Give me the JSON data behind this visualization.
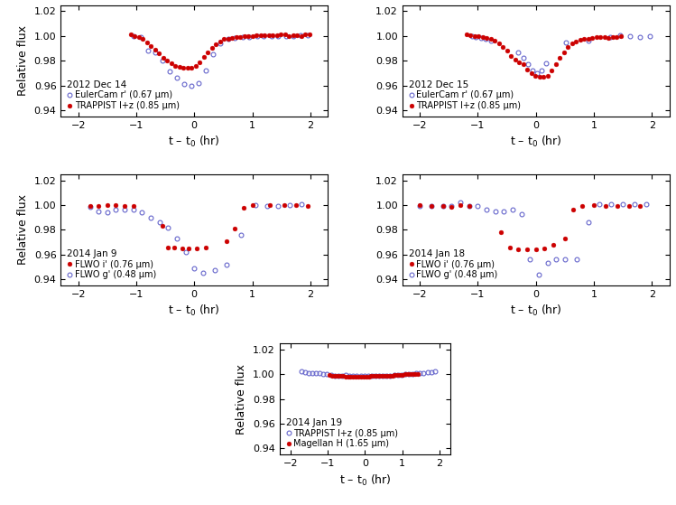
{
  "panels": [
    {
      "date": "2012 Dec 14",
      "series": [
        {
          "label": "EulerCam r' (0.67 μm)",
          "color": "#6666cc",
          "filled": false,
          "x": [
            -1.05,
            -0.92,
            -0.8,
            -0.68,
            -0.55,
            -0.42,
            -0.3,
            -0.17,
            -0.05,
            0.08,
            0.2,
            0.33,
            0.45,
            0.58,
            0.7,
            0.83,
            0.95,
            1.08,
            1.2,
            1.33,
            1.45,
            1.58,
            1.7,
            1.83,
            1.95
          ],
          "y": [
            0.9995,
            0.999,
            0.988,
            0.987,
            0.98,
            0.971,
            0.966,
            0.961,
            0.9595,
            0.962,
            0.972,
            0.985,
            0.994,
            0.998,
            0.9985,
            0.999,
            0.999,
            0.9995,
            0.9998,
            1.0,
            1.0,
            1.0,
            1.0002,
            1.0005,
            1.0005
          ]
        },
        {
          "label": "TRAPPIST I+z (0.85 μm)",
          "color": "#cc0000",
          "filled": true,
          "x": [
            -1.1,
            -1.03,
            -0.96,
            -0.89,
            -0.82,
            -0.75,
            -0.68,
            -0.61,
            -0.54,
            -0.47,
            -0.4,
            -0.33,
            -0.26,
            -0.19,
            -0.12,
            -0.05,
            0.02,
            0.09,
            0.16,
            0.23,
            0.3,
            0.37,
            0.44,
            0.51,
            0.58,
            0.65,
            0.72,
            0.79,
            0.86,
            0.93,
            1.0,
            1.07,
            1.14,
            1.21,
            1.28,
            1.35,
            1.42,
            1.49,
            1.56,
            1.63,
            1.7,
            1.77,
            1.84,
            1.91,
            1.98
          ],
          "y": [
            1.001,
            0.9995,
            0.999,
            0.9975,
            0.995,
            0.992,
            0.989,
            0.986,
            0.982,
            0.98,
            0.978,
            0.976,
            0.975,
            0.974,
            0.974,
            0.974,
            0.976,
            0.979,
            0.983,
            0.987,
            0.9905,
            0.993,
            0.9955,
            0.9975,
            0.998,
            0.9985,
            0.9988,
            0.999,
            0.9995,
            0.9998,
            1.0,
            1.0005,
            1.0005,
            1.0005,
            1.0003,
            1.0005,
            1.0008,
            1.001,
            1.001,
            0.9998,
            1.0005,
            1.0003,
            1.0,
            1.001,
            1.0015
          ]
        }
      ]
    },
    {
      "date": "2012 Dec 15",
      "series": [
        {
          "label": "EulerCam r' (0.67 μm)",
          "color": "#6666cc",
          "filled": false,
          "x": [
            -1.1,
            -1.03,
            -0.95,
            -0.87,
            -0.78,
            -0.3,
            -0.22,
            -0.14,
            -0.06,
            0.02,
            0.1,
            0.18,
            0.52,
            0.9,
            1.28,
            1.45,
            1.62,
            1.79,
            1.96
          ],
          "y": [
            1.0,
            0.999,
            0.9985,
            0.9975,
            0.996,
            0.987,
            0.982,
            0.9775,
            0.972,
            0.97,
            0.972,
            0.978,
            0.9945,
            0.9965,
            0.999,
            1.0005,
            1.0,
            0.999,
            0.9995
          ]
        },
        {
          "label": "TRAPPIST I+z (0.85 μm)",
          "color": "#cc0000",
          "filled": true,
          "x": [
            -1.2,
            -1.13,
            -1.06,
            -0.99,
            -0.92,
            -0.85,
            -0.78,
            -0.71,
            -0.64,
            -0.57,
            -0.5,
            -0.43,
            -0.36,
            -0.29,
            -0.22,
            -0.15,
            -0.08,
            -0.01,
            0.06,
            0.13,
            0.2,
            0.27,
            0.34,
            0.41,
            0.48,
            0.55,
            0.62,
            0.69,
            0.76,
            0.83,
            0.9,
            0.97,
            1.04,
            1.11,
            1.18,
            1.25,
            1.32,
            1.39,
            1.46
          ],
          "y": [
            1.001,
            1.0005,
            1.0,
            0.9995,
            0.999,
            0.9985,
            0.9975,
            0.996,
            0.994,
            0.991,
            0.988,
            0.984,
            0.981,
            0.979,
            0.977,
            0.973,
            0.97,
            0.968,
            0.967,
            0.967,
            0.968,
            0.972,
            0.977,
            0.982,
            0.987,
            0.991,
            0.994,
            0.9955,
            0.997,
            0.9975,
            0.998,
            0.9985,
            0.999,
            0.999,
            0.999,
            0.9985,
            0.999,
            0.999,
            0.9995
          ]
        }
      ]
    },
    {
      "date": "2014 Jan 9",
      "series": [
        {
          "label": "FLWO i' (0.76 μm)",
          "color": "#cc0000",
          "filled": true,
          "x": [
            -1.8,
            -1.65,
            -1.5,
            -1.35,
            -1.2,
            -1.05,
            -0.55,
            -0.45,
            -0.35,
            -0.2,
            -0.1,
            0.05,
            0.2,
            0.55,
            0.7,
            0.85,
            1.0,
            1.3,
            1.55,
            1.75,
            1.95
          ],
          "y": [
            0.9993,
            0.9995,
            1.0,
            1.0,
            0.9995,
            0.9995,
            0.983,
            0.966,
            0.966,
            0.965,
            0.965,
            0.965,
            0.966,
            0.971,
            0.981,
            0.998,
            0.9998,
            1.0,
            0.9998,
            0.9998,
            0.9995
          ]
        },
        {
          "label": "FLWO g' (0.48 μm)",
          "color": "#6666cc",
          "filled": false,
          "x": [
            -1.8,
            -1.65,
            -1.5,
            -1.35,
            -1.2,
            -1.05,
            -0.9,
            -0.75,
            -0.6,
            -0.45,
            -0.3,
            -0.15,
            0.0,
            0.15,
            0.35,
            0.55,
            0.8,
            1.05,
            1.25,
            1.45,
            1.65,
            1.85
          ],
          "y": [
            0.9985,
            0.995,
            0.9945,
            0.996,
            0.996,
            0.996,
            0.994,
            0.99,
            0.986,
            0.982,
            0.973,
            0.962,
            0.949,
            0.9455,
            0.947,
            0.952,
            0.976,
            1.0,
            0.999,
            0.999,
            1.0,
            1.001
          ]
        }
      ]
    },
    {
      "date": "2014 Jan 18",
      "series": [
        {
          "label": "FLWO i' (0.76 μm)",
          "color": "#cc0000",
          "filled": true,
          "x": [
            -2.0,
            -1.8,
            -1.6,
            -1.45,
            -1.3,
            -1.15,
            -0.6,
            -0.45,
            -0.3,
            -0.15,
            0.0,
            0.15,
            0.3,
            0.5,
            0.65,
            0.8,
            1.0,
            1.2,
            1.4,
            1.6,
            1.8
          ],
          "y": [
            1.0,
            0.999,
            0.999,
            0.9985,
            1.0,
            0.999,
            0.978,
            0.966,
            0.964,
            0.964,
            0.964,
            0.965,
            0.968,
            0.973,
            0.996,
            0.999,
            1.0,
            0.999,
            0.999,
            0.9995,
            0.999
          ]
        },
        {
          "label": "FLWO g' (0.48 μm)",
          "color": "#6666cc",
          "filled": false,
          "x": [
            -2.0,
            -1.8,
            -1.6,
            -1.45,
            -1.3,
            -1.15,
            -1.0,
            -0.85,
            -0.7,
            -0.55,
            -0.4,
            -0.25,
            -0.1,
            0.05,
            0.2,
            0.35,
            0.5,
            0.7,
            0.9,
            1.1,
            1.3,
            1.5,
            1.7,
            1.9
          ],
          "y": [
            0.9995,
            0.9995,
            0.999,
            0.9995,
            1.002,
            0.9995,
            0.999,
            0.996,
            0.995,
            0.995,
            0.996,
            0.993,
            0.956,
            0.944,
            0.953,
            0.956,
            0.956,
            0.956,
            0.986,
            1.0005,
            1.001,
            1.001,
            1.001,
            1.0005
          ]
        }
      ]
    },
    {
      "date": "2014 Jan 19",
      "series": [
        {
          "label": "TRAPPIST I+z (0.85 μm)",
          "color": "#6666cc",
          "filled": false,
          "x": [
            -1.72,
            -1.62,
            -1.52,
            -1.42,
            -1.32,
            -1.22,
            -1.12,
            -1.02,
            -0.92,
            -0.82,
            -0.72,
            -0.62,
            -0.52,
            -0.42,
            -0.32,
            -0.22,
            -0.12,
            -0.02,
            0.08,
            0.18,
            0.28,
            0.38,
            0.48,
            0.58,
            0.68,
            0.78,
            0.88,
            0.98,
            1.08,
            1.18,
            1.28,
            1.38,
            1.48,
            1.58,
            1.68,
            1.78,
            1.88
          ],
          "y": [
            1.002,
            1.0015,
            1.001,
            1.001,
            1.0005,
            1.0005,
            1.0,
            1.0,
            0.9995,
            0.999,
            0.999,
            0.999,
            0.9992,
            0.9988,
            0.9985,
            0.9985,
            0.9988,
            0.9985,
            0.9985,
            0.9988,
            0.9988,
            0.9988,
            0.9988,
            0.999,
            0.999,
            0.9993,
            0.9993,
            0.9995,
            0.9998,
            1.0,
            1.0002,
            1.0005,
            1.0005,
            1.001,
            1.0015,
            1.0015,
            1.002
          ]
        },
        {
          "label": "Magellan H (1.65 μm)",
          "color": "#cc0000",
          "filled": true,
          "x": [
            -0.95,
            -0.88,
            -0.81,
            -0.74,
            -0.67,
            -0.6,
            -0.53,
            -0.46,
            -0.39,
            -0.32,
            -0.25,
            -0.18,
            -0.11,
            -0.04,
            0.03,
            0.1,
            0.17,
            0.24,
            0.31,
            0.38,
            0.45,
            0.52,
            0.59,
            0.66,
            0.73,
            0.8,
            0.87,
            0.94,
            1.01,
            1.08,
            1.15,
            1.22,
            1.29,
            1.36,
            1.43
          ],
          "y": [
            0.9993,
            0.999,
            0.9988,
            0.9988,
            0.9985,
            0.9983,
            0.9982,
            0.998,
            0.998,
            0.9978,
            0.9978,
            0.998,
            0.998,
            0.998,
            0.9982,
            0.9982,
            0.9983,
            0.9985,
            0.9985,
            0.9985,
            0.9985,
            0.9988,
            0.9988,
            0.999,
            0.999,
            0.9993,
            0.9993,
            0.9995,
            0.9995,
            0.9998,
            0.9998,
            1.0,
            1.0,
            1.0,
            1.0
          ]
        }
      ]
    }
  ],
  "ylim": [
    0.935,
    1.025
  ],
  "xlim": [
    -2.3,
    2.3
  ],
  "yticks": [
    0.94,
    0.96,
    0.98,
    1.0,
    1.02
  ],
  "xticks": [
    -2,
    -1,
    0,
    1,
    2
  ],
  "xlabel": "t – t$_0$ (hr)",
  "ylabel": "Relative flux",
  "bg_color": "white",
  "spine_color": "black",
  "markersize": 3.5,
  "tick_labelsize": 8,
  "label_fontsize": 9,
  "legend_fontsize": 7,
  "legend_title_fontsize": 7.5
}
